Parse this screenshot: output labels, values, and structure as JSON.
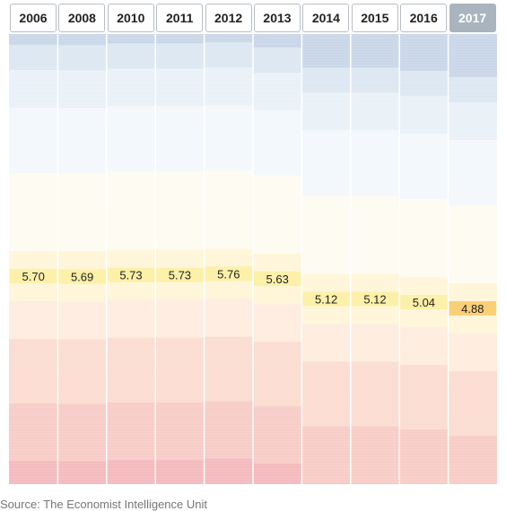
{
  "chart_data": {
    "type": "bar",
    "categories": [
      "2006",
      "2008",
      "2010",
      "2011",
      "2012",
      "2013",
      "2014",
      "2015",
      "2016",
      "2017"
    ],
    "values": [
      5.7,
      5.69,
      5.73,
      5.73,
      5.76,
      5.63,
      5.12,
      5.12,
      5.04,
      4.88
    ],
    "value_labels": [
      "5.70",
      "5.69",
      "5.73",
      "5.73",
      "5.76",
      "5.63",
      "5.12",
      "5.12",
      "5.04",
      "4.88"
    ],
    "selected_category": "2017",
    "title": "",
    "xlabel": "",
    "ylabel": "",
    "grid": false,
    "legend": "none",
    "colors": {
      "value_band": "#fdf0a8",
      "selected_value_band": "#fbcf77",
      "band_top": "#c9d6e8",
      "band_bottom": "#f4b9bc",
      "tab_active_bg": "#a9b4be"
    }
  },
  "source_text": "Source: The Economist Intelligence Unit"
}
